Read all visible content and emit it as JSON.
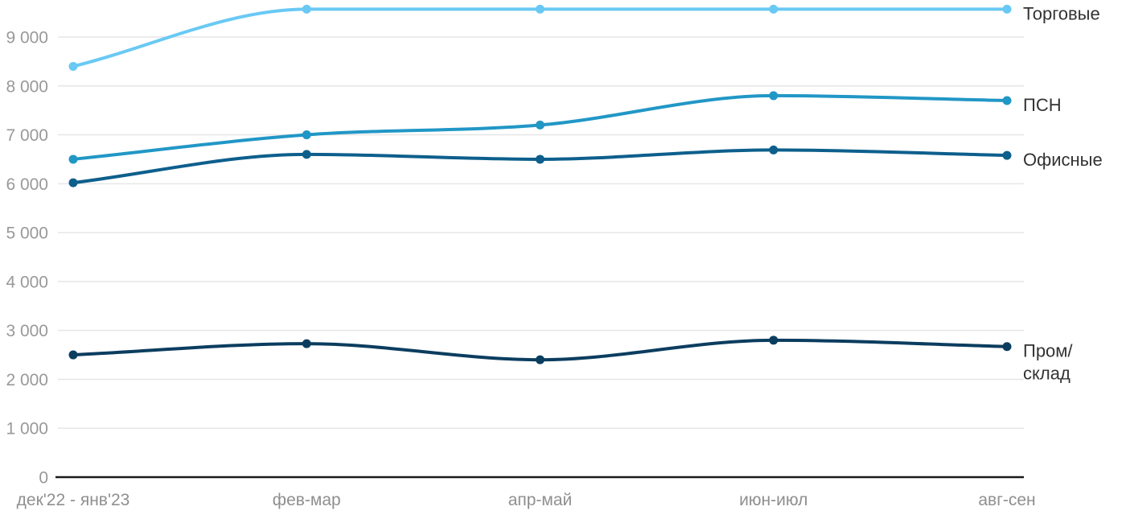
{
  "chart_data": {
    "type": "line",
    "categories": [
      "дек'22 - янв'23",
      "фев-мар",
      "апр-май",
      "июн-июл",
      "авг-сен"
    ],
    "series": [
      {
        "name": "Торговые",
        "slug": "retail",
        "label_lines": [
          "Торговые"
        ],
        "color": "#69C9F4",
        "values": [
          8400,
          9570,
          9570,
          9570,
          9570
        ]
      },
      {
        "name": "ПСН",
        "slug": "psn",
        "label_lines": [
          "ПСН"
        ],
        "color": "#2197C6",
        "values": [
          6500,
          7000,
          7200,
          7800,
          7700
        ]
      },
      {
        "name": "Офисные",
        "slug": "office",
        "label_lines": [
          "Офисные"
        ],
        "color": "#0D5F8C",
        "values": [
          6020,
          6600,
          6500,
          6690,
          6580
        ]
      },
      {
        "name": "Пром/склад",
        "slug": "industrial-warehouse",
        "label_lines": [
          "Пром/",
          "склад"
        ],
        "color": "#0B3D5F",
        "values": [
          2500,
          2730,
          2400,
          2800,
          2670
        ]
      }
    ],
    "y_ticks": [
      {
        "value": 0,
        "label": "0"
      },
      {
        "value": 1000,
        "label": "1 000"
      },
      {
        "value": 2000,
        "label": "2 000"
      },
      {
        "value": 3000,
        "label": "3 000"
      },
      {
        "value": 4000,
        "label": "4 000"
      },
      {
        "value": 5000,
        "label": "5 000"
      },
      {
        "value": 6000,
        "label": "6 000"
      },
      {
        "value": 7000,
        "label": "7 000"
      },
      {
        "value": 8000,
        "label": "8 000"
      },
      {
        "value": 9000,
        "label": "9 000"
      }
    ],
    "ylim": [
      0,
      9800
    ],
    "grid": "horizontal",
    "legend_position": "right-inline",
    "colors": {
      "background": "#FFFFFF",
      "gridline": "#E6E6E6",
      "axis_line": "#1A1A1A",
      "tick_text": "#999999",
      "x_tick_text": "#8F8F8F",
      "series_label_text": "#333333"
    }
  }
}
